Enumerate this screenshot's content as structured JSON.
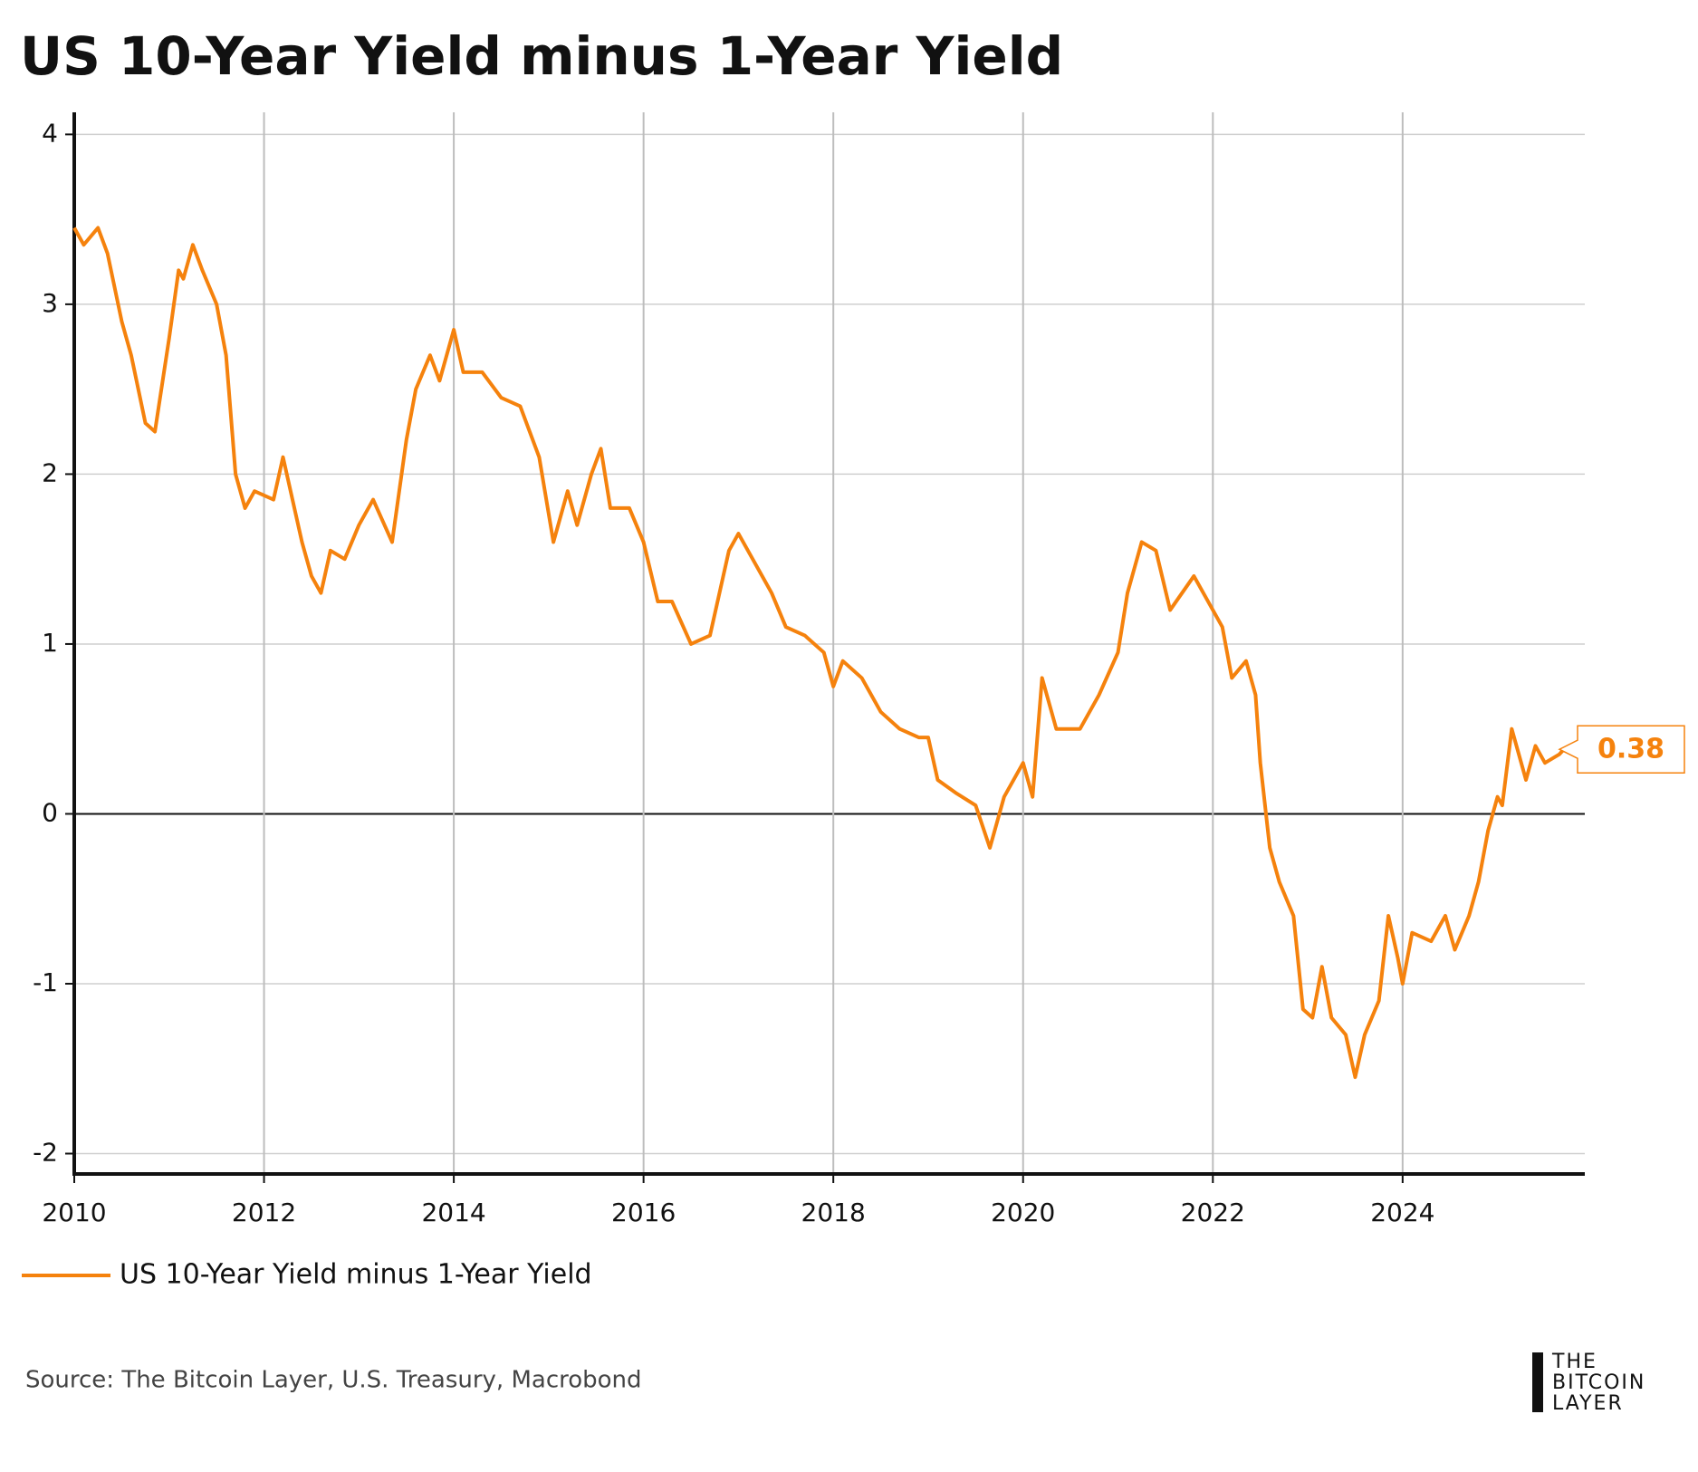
{
  "chart_data": {
    "type": "line",
    "title": "US 10-Year Yield minus 1-Year Yield",
    "source": "Source: The Bitcoin Layer, U.S. Treasury, Macrobond",
    "logo": [
      "THE",
      "BITCOIN",
      "LAYER"
    ],
    "xlim": [
      2010,
      2025.92
    ],
    "xticks": [
      2010,
      2012,
      2014,
      2016,
      2018,
      2020,
      2022,
      2024
    ],
    "ylim": [
      -2.12,
      4.13
    ],
    "yticks": [
      -2,
      -1,
      0,
      1,
      2,
      3,
      4
    ],
    "grid": true,
    "legend": "bottom-left",
    "x": [
      2010.0,
      2010.1,
      2010.25,
      2010.35,
      2010.5,
      2010.6,
      2010.75,
      2010.85,
      2011.0,
      2011.1,
      2011.15,
      2011.25,
      2011.35,
      2011.5,
      2011.6,
      2011.7,
      2011.8,
      2011.9,
      2012.1,
      2012.2,
      2012.3,
      2012.4,
      2012.5,
      2012.6,
      2012.7,
      2012.85,
      2013.0,
      2013.15,
      2013.35,
      2013.5,
      2013.6,
      2013.75,
      2013.85,
      2014.0,
      2014.1,
      2014.3,
      2014.5,
      2014.7,
      2014.9,
      2015.05,
      2015.2,
      2015.3,
      2015.45,
      2015.55,
      2015.65,
      2015.85,
      2016.0,
      2016.15,
      2016.3,
      2016.5,
      2016.7,
      2016.9,
      2017.0,
      2017.2,
      2017.35,
      2017.5,
      2017.7,
      2017.9,
      2018.0,
      2018.1,
      2018.3,
      2018.5,
      2018.7,
      2018.9,
      2019.0,
      2019.1,
      2019.3,
      2019.5,
      2019.65,
      2019.8,
      2020.0,
      2020.1,
      2020.2,
      2020.35,
      2020.6,
      2020.8,
      2021.0,
      2021.1,
      2021.25,
      2021.4,
      2021.55,
      2021.8,
      2021.95,
      2022.1,
      2022.2,
      2022.35,
      2022.45,
      2022.5,
      2022.6,
      2022.7,
      2022.85,
      2022.95,
      2023.05,
      2023.15,
      2023.25,
      2023.4,
      2023.5,
      2023.6,
      2023.75,
      2023.85,
      2023.95,
      2024.0,
      2024.1,
      2024.3,
      2024.45,
      2024.55,
      2024.7,
      2024.8,
      2024.9,
      2025.0,
      2025.05,
      2025.15,
      2025.3,
      2025.4,
      2025.5,
      2025.65,
      2025.7
    ],
    "series": [
      {
        "name": "US 10-Year Yield minus 1-Year Yield",
        "color": "#f5820d",
        "values": [
          3.45,
          3.35,
          3.45,
          3.3,
          2.9,
          2.7,
          2.3,
          2.25,
          2.8,
          3.2,
          3.15,
          3.35,
          3.2,
          3.0,
          2.7,
          2.0,
          1.8,
          1.9,
          1.85,
          2.1,
          1.85,
          1.6,
          1.4,
          1.3,
          1.55,
          1.5,
          1.7,
          1.85,
          1.6,
          2.2,
          2.5,
          2.7,
          2.55,
          2.85,
          2.6,
          2.6,
          2.45,
          2.4,
          2.1,
          1.6,
          1.9,
          1.7,
          2.0,
          2.15,
          1.8,
          1.8,
          1.6,
          1.25,
          1.25,
          1.0,
          1.05,
          1.55,
          1.65,
          1.45,
          1.3,
          1.1,
          1.05,
          0.95,
          0.75,
          0.9,
          0.8,
          0.6,
          0.5,
          0.45,
          0.45,
          0.2,
          0.12,
          0.05,
          -0.2,
          0.1,
          0.3,
          0.1,
          0.8,
          0.5,
          0.5,
          0.7,
          0.95,
          1.3,
          1.6,
          1.55,
          1.2,
          1.4,
          1.25,
          1.1,
          0.8,
          0.9,
          0.7,
          0.3,
          -0.2,
          -0.4,
          -0.6,
          -1.15,
          -1.2,
          -0.9,
          -1.2,
          -1.3,
          -1.55,
          -1.3,
          -1.1,
          -0.6,
          -0.85,
          -1.0,
          -0.7,
          -0.75,
          -0.6,
          -0.8,
          -0.6,
          -0.4,
          -0.1,
          0.1,
          0.05,
          0.5,
          0.2,
          0.4,
          0.3,
          0.35,
          0.38
        ]
      }
    ]
  }
}
